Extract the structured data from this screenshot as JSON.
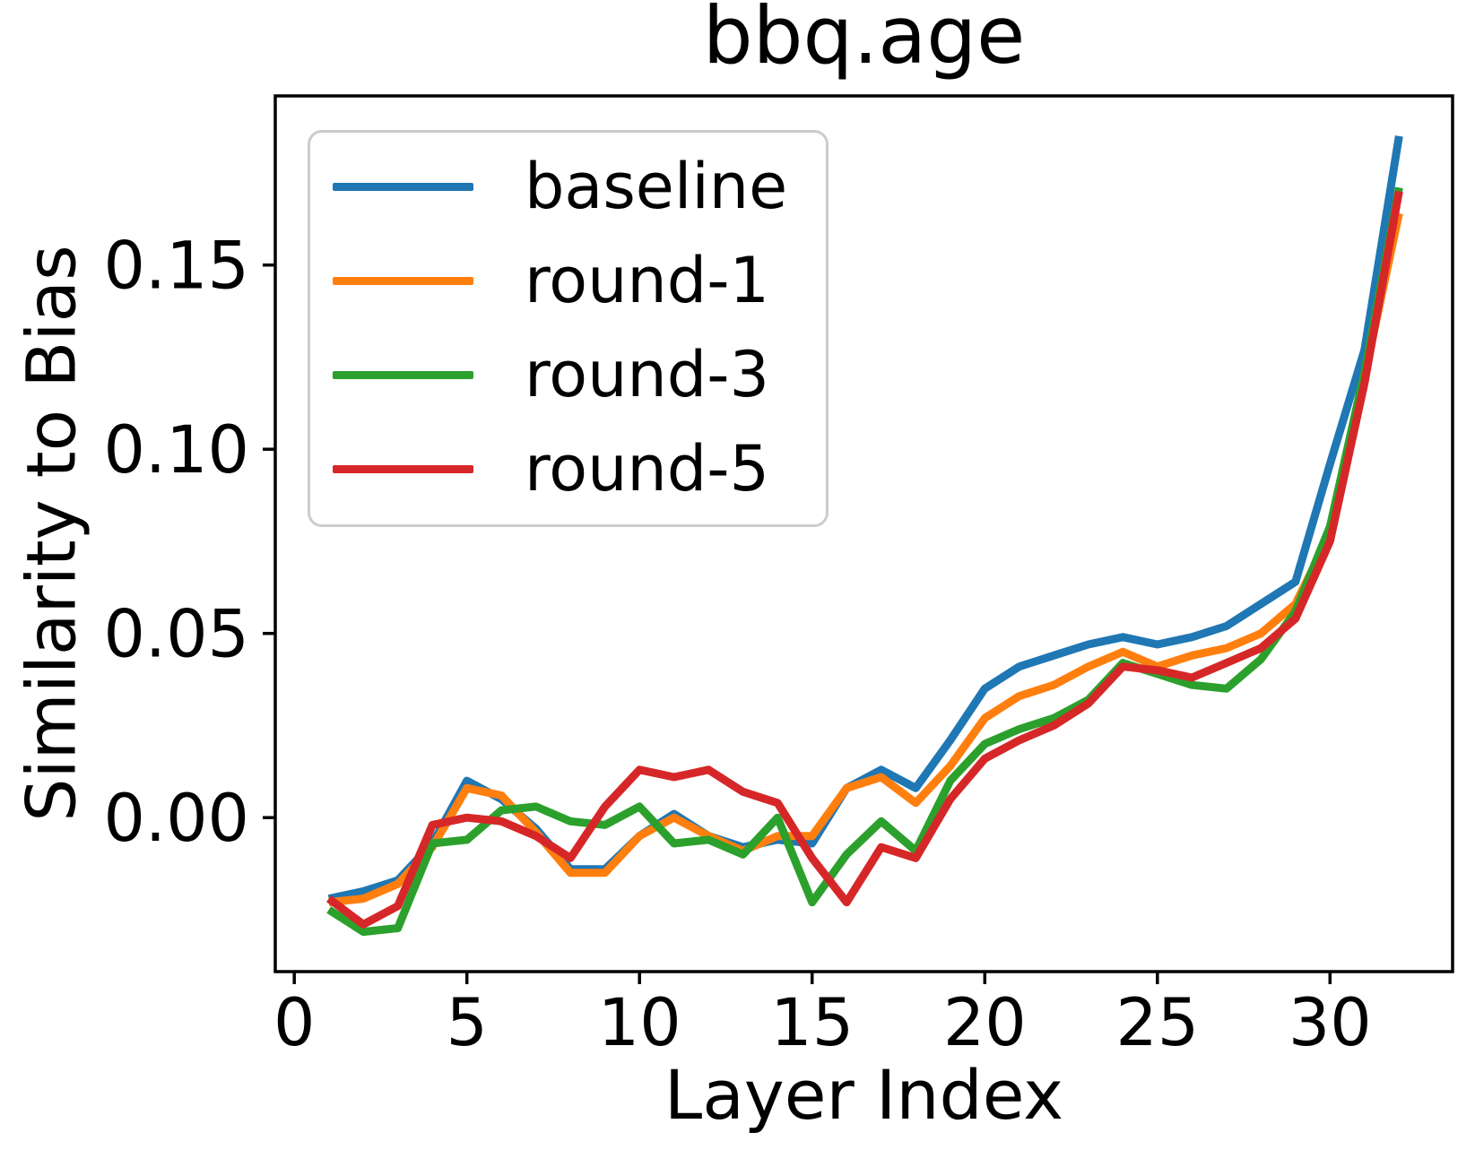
{
  "chart_data": {
    "type": "line",
    "title": "bbq.age",
    "xlabel": "Layer Index",
    "ylabel": "Similarity to Bias",
    "x": [
      1,
      2,
      3,
      4,
      5,
      6,
      7,
      8,
      9,
      10,
      11,
      12,
      13,
      14,
      15,
      16,
      17,
      18,
      19,
      20,
      21,
      22,
      23,
      24,
      25,
      26,
      27,
      28,
      29,
      30,
      31,
      32
    ],
    "series": [
      {
        "name": "baseline",
        "color": "#1f77b4",
        "values": [
          -0.022,
          -0.02,
          -0.017,
          -0.007,
          0.01,
          0.005,
          -0.003,
          -0.014,
          -0.014,
          -0.005,
          0.001,
          -0.005,
          -0.008,
          -0.006,
          -0.007,
          0.008,
          0.013,
          0.008,
          0.021,
          0.035,
          0.041,
          0.044,
          0.047,
          0.049,
          0.047,
          0.049,
          0.052,
          0.058,
          0.064,
          0.096,
          0.127,
          0.185
        ]
      },
      {
        "name": "round-1",
        "color": "#ff7f0e",
        "values": [
          -0.023,
          -0.022,
          -0.018,
          -0.008,
          0.008,
          0.006,
          -0.004,
          -0.015,
          -0.015,
          -0.005,
          0.0,
          -0.005,
          -0.009,
          -0.005,
          -0.005,
          0.008,
          0.011,
          0.004,
          0.014,
          0.027,
          0.033,
          0.036,
          0.041,
          0.045,
          0.041,
          0.044,
          0.046,
          0.05,
          0.058,
          0.077,
          0.12,
          0.164
        ]
      },
      {
        "name": "round-3",
        "color": "#2ca02c",
        "values": [
          -0.025,
          -0.031,
          -0.03,
          -0.007,
          -0.006,
          0.002,
          0.003,
          -0.001,
          -0.002,
          0.003,
          -0.007,
          -0.006,
          -0.01,
          0.0,
          -0.023,
          -0.01,
          -0.001,
          -0.009,
          0.01,
          0.02,
          0.024,
          0.027,
          0.032,
          0.042,
          0.039,
          0.036,
          0.035,
          0.043,
          0.056,
          0.079,
          0.121,
          0.171
        ]
      },
      {
        "name": "round-5",
        "color": "#d62728",
        "values": [
          -0.022,
          -0.029,
          -0.024,
          -0.002,
          0.0,
          -0.001,
          -0.005,
          -0.011,
          0.003,
          0.013,
          0.011,
          0.013,
          0.007,
          0.004,
          -0.011,
          -0.023,
          -0.008,
          -0.011,
          0.005,
          0.016,
          0.021,
          0.025,
          0.031,
          0.041,
          0.04,
          0.038,
          0.042,
          0.046,
          0.054,
          0.075,
          0.118,
          0.17
        ]
      }
    ],
    "xlim": [
      -0.55,
      33.55
    ],
    "ylim": [
      -0.0418,
      0.1959
    ],
    "x_ticks": {
      "values": [
        0,
        5,
        10,
        15,
        20,
        25,
        30
      ],
      "labels": [
        "0",
        "5",
        "10",
        "15",
        "20",
        "25",
        "30"
      ]
    },
    "y_ticks": {
      "values": [
        0.0,
        0.05,
        0.1,
        0.15
      ],
      "labels": [
        "0.00",
        "0.05",
        "0.10",
        "0.15"
      ]
    },
    "grid": false,
    "legend": {
      "position": "upper left",
      "entries": [
        "baseline",
        "round-1",
        "round-3",
        "round-5"
      ]
    },
    "axis_color": "#000000"
  }
}
